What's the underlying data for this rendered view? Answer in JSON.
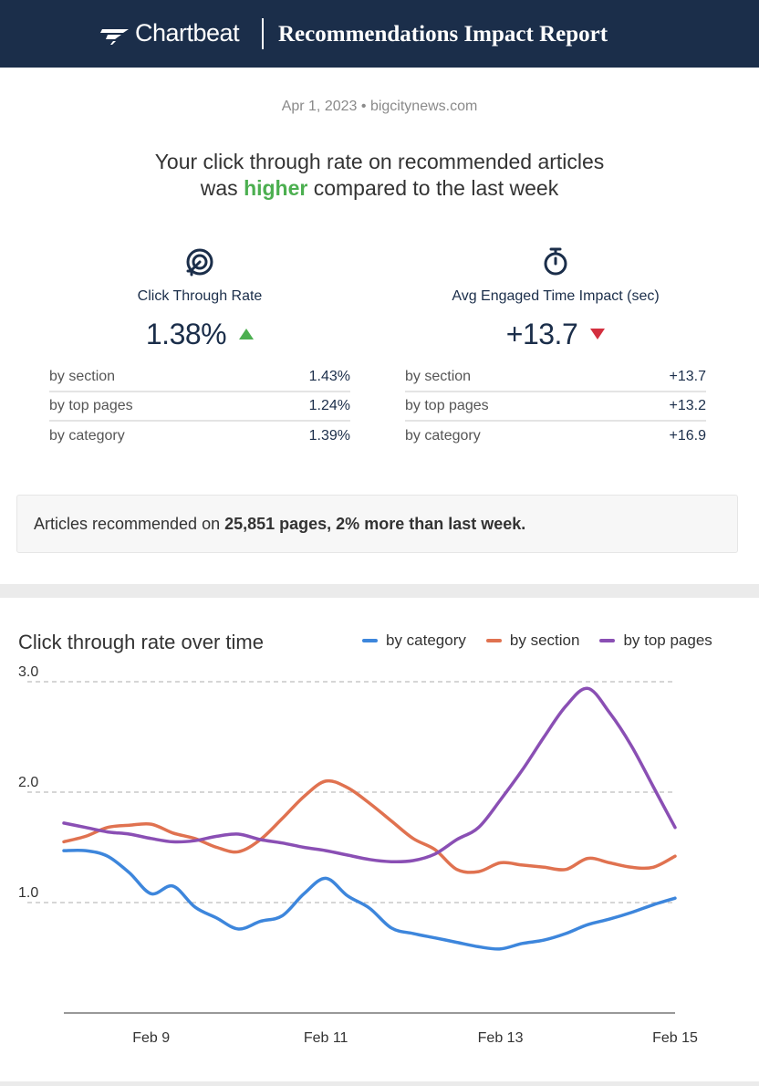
{
  "header": {
    "brand": "Chartbeat",
    "title": "Recommendations Impact Report"
  },
  "report": {
    "date": "Apr 1, 2023",
    "separator": "•",
    "domain": "bigcitynews.com",
    "headline_part1": "Your click through rate on recommended articles",
    "headline_was": "was ",
    "headline_highlight": "higher",
    "headline_part2": " compared to the last week",
    "highlight_color": "#4caf50"
  },
  "metrics": [
    {
      "icon": "target-icon",
      "label": "Click Through Rate",
      "value": "1.38%",
      "trend": "up",
      "rows": [
        {
          "label": "by section",
          "value": "1.43%"
        },
        {
          "label": "by top pages",
          "value": "1.24%"
        },
        {
          "label": "by category",
          "value": "1.39%"
        }
      ]
    },
    {
      "icon": "stopwatch-icon",
      "label": "Avg Engaged Time Impact (sec)",
      "value": "+13.7",
      "trend": "down",
      "rows": [
        {
          "label": "by section",
          "value": "+13.7"
        },
        {
          "label": "by top pages",
          "value": "+13.2"
        },
        {
          "label": "by category",
          "value": "+16.9"
        }
      ]
    }
  ],
  "summary": {
    "prefix": "Articles recommended on ",
    "bold": "25,851 pages, 2% more than last week."
  },
  "chart_data": {
    "type": "line",
    "title": "Click through rate over time",
    "xlabel": "",
    "ylabel": "",
    "ylim": [
      0.0,
      3.0
    ],
    "xlim": [
      0,
      7
    ],
    "yticks": [
      1.0,
      2.0,
      3.0
    ],
    "ytick_labels": [
      "1.0",
      "2.0",
      "3.0"
    ],
    "xticks": [
      1,
      3,
      5,
      7
    ],
    "xtick_labels": [
      "Feb 9",
      "Feb 11",
      "Feb 13",
      "Feb 15"
    ],
    "grid": "horizontal dashed",
    "legend": "top-right",
    "series": [
      {
        "name": "by category",
        "color": "#3d86dc",
        "x": [
          0,
          0.25,
          0.5,
          0.75,
          1.0,
          1.25,
          1.5,
          1.75,
          2.0,
          2.25,
          2.5,
          2.75,
          3.0,
          3.25,
          3.5,
          3.75,
          4.0,
          4.25,
          4.5,
          4.75,
          5.0,
          5.25,
          5.5,
          5.75,
          6.0,
          6.25,
          6.5,
          6.75,
          7.0
        ],
        "values": [
          1.47,
          1.47,
          1.42,
          1.27,
          1.08,
          1.15,
          0.96,
          0.86,
          0.76,
          0.83,
          0.88,
          1.08,
          1.22,
          1.06,
          0.95,
          0.77,
          0.72,
          0.68,
          0.64,
          0.6,
          0.58,
          0.63,
          0.66,
          0.72,
          0.8,
          0.85,
          0.91,
          0.98,
          1.04
        ]
      },
      {
        "name": "by section",
        "color": "#e07250",
        "x": [
          0,
          0.25,
          0.5,
          0.75,
          1.0,
          1.25,
          1.5,
          1.75,
          2.0,
          2.25,
          2.5,
          2.75,
          3.0,
          3.25,
          3.5,
          3.75,
          4.0,
          4.25,
          4.5,
          4.75,
          5.0,
          5.25,
          5.5,
          5.75,
          6.0,
          6.25,
          6.5,
          6.75,
          7.0
        ],
        "values": [
          1.55,
          1.6,
          1.68,
          1.7,
          1.71,
          1.63,
          1.58,
          1.5,
          1.46,
          1.57,
          1.76,
          1.96,
          2.1,
          2.04,
          1.9,
          1.74,
          1.58,
          1.48,
          1.3,
          1.28,
          1.36,
          1.34,
          1.32,
          1.3,
          1.4,
          1.36,
          1.32,
          1.32,
          1.42
        ]
      },
      {
        "name": "by top pages",
        "color": "#8a4fb4",
        "x": [
          0,
          0.25,
          0.5,
          0.75,
          1.0,
          1.25,
          1.5,
          1.75,
          2.0,
          2.25,
          2.5,
          2.75,
          3.0,
          3.25,
          3.5,
          3.75,
          4.0,
          4.25,
          4.5,
          4.75,
          5.0,
          5.25,
          5.5,
          5.75,
          6.0,
          6.25,
          6.5,
          6.75,
          7.0
        ],
        "values": [
          1.72,
          1.68,
          1.64,
          1.62,
          1.58,
          1.55,
          1.56,
          1.6,
          1.62,
          1.57,
          1.54,
          1.5,
          1.47,
          1.43,
          1.39,
          1.37,
          1.38,
          1.44,
          1.57,
          1.68,
          1.93,
          2.2,
          2.5,
          2.78,
          2.94,
          2.72,
          2.42,
          2.05,
          1.68
        ]
      }
    ]
  }
}
